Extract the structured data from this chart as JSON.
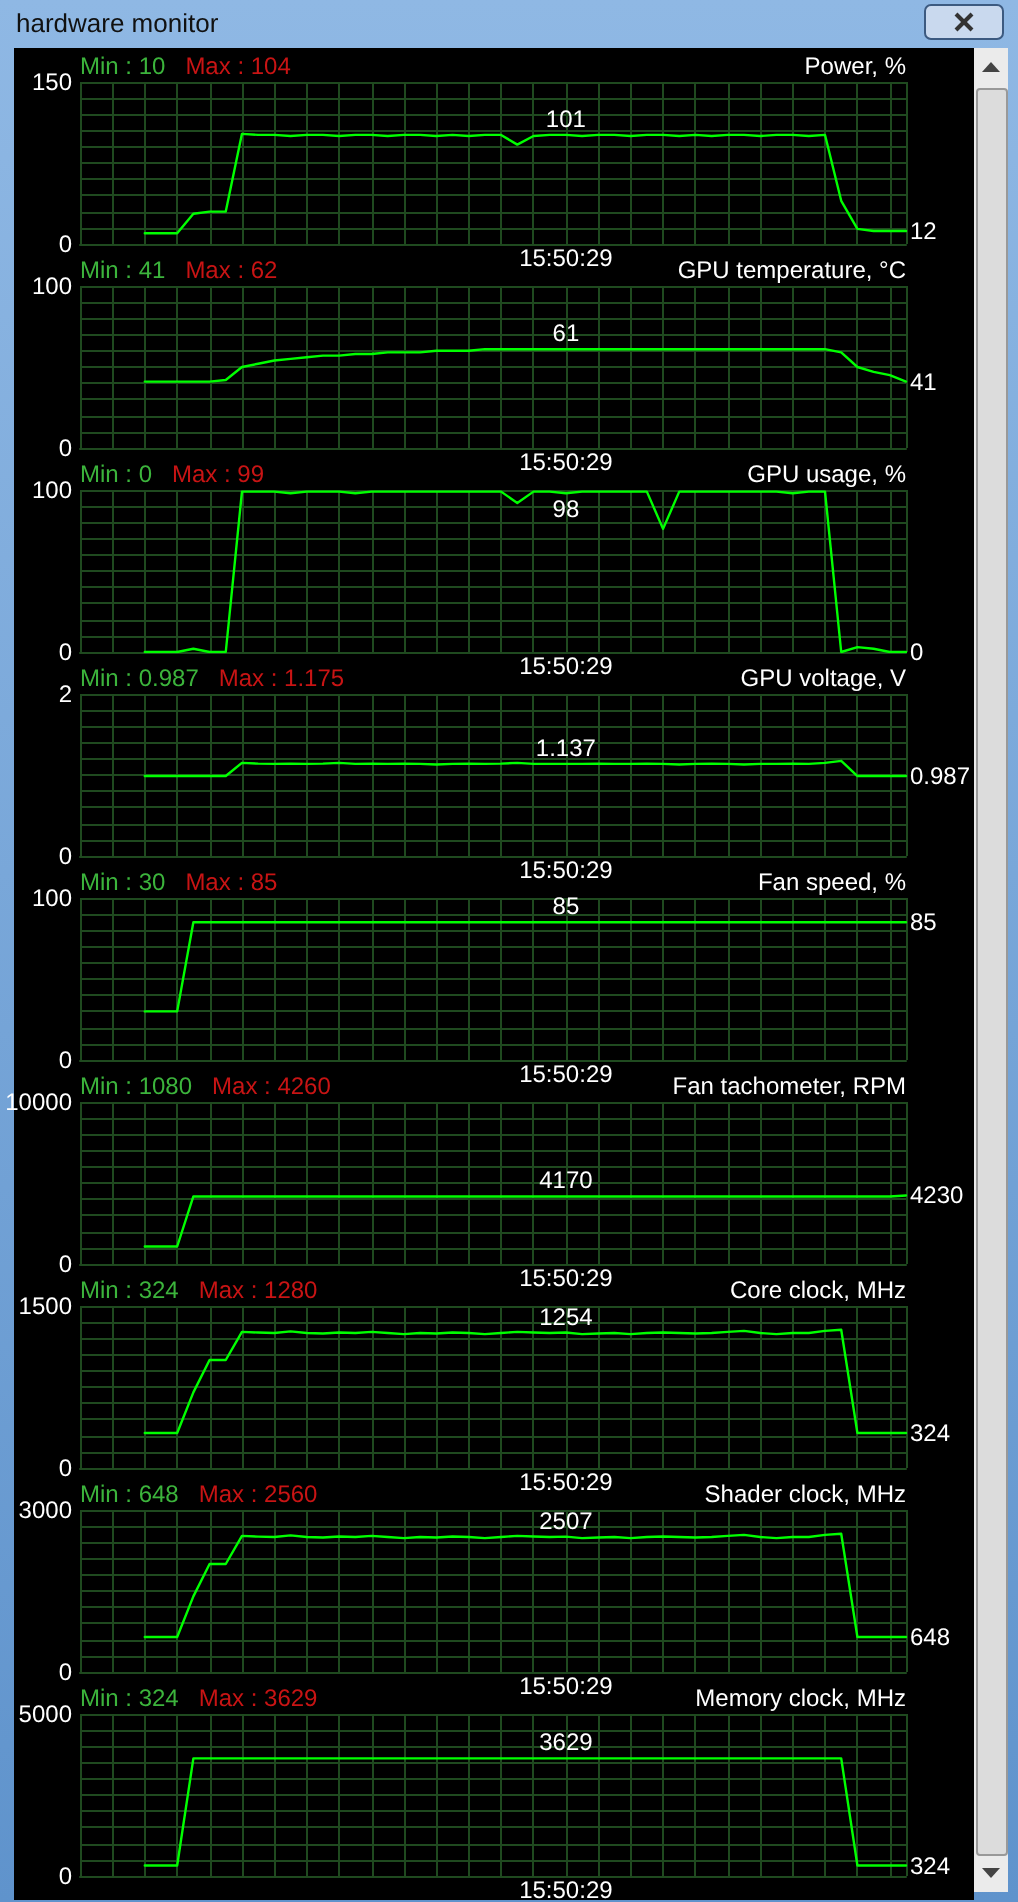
{
  "chart_data": [
    {
      "type": "line",
      "subtitle": "hardware monitor",
      "title": "Power, %",
      "annotations": [
        "Min : 10",
        "Max : 104"
      ],
      "categories": [
        null,
        null,
        null,
        null,
        null,
        null,
        null,
        null,
        null,
        null,
        null,
        null,
        null,
        null,
        null,
        null,
        null,
        null,
        null,
        null,
        null,
        null,
        null,
        null,
        null,
        null,
        null,
        null,
        null,
        null,
        "15:50:29",
        null,
        null,
        null,
        null,
        null,
        null,
        null,
        null,
        null,
        null,
        null,
        null,
        null,
        null,
        null,
        null,
        null,
        null,
        null,
        null,
        null
      ],
      "color": "#00ff00",
      "values": [
        null,
        null,
        null,
        null,
        10,
        10,
        10,
        28,
        30,
        30,
        102,
        101,
        101,
        100,
        101,
        101,
        100,
        101,
        101,
        100,
        101,
        101,
        100,
        101,
        100,
        101,
        101,
        92,
        100,
        101,
        101,
        100,
        101,
        101,
        100,
        101,
        101,
        100,
        101,
        100,
        101,
        101,
        100,
        101,
        101,
        100,
        101,
        40,
        14,
        12,
        12,
        12
      ],
      "value_labels": [
        null,
        null,
        null,
        null,
        null,
        null,
        null,
        null,
        null,
        null,
        null,
        null,
        null,
        null,
        null,
        null,
        null,
        null,
        null,
        null,
        null,
        null,
        null,
        null,
        null,
        null,
        null,
        null,
        null,
        null,
        "101",
        null,
        null,
        null,
        null,
        null,
        null,
        null,
        null,
        null,
        null,
        null,
        null,
        null,
        null,
        null,
        null,
        null,
        null,
        null,
        null,
        "12"
      ],
      "ylim": [
        0,
        150
      ],
      "yticks": [
        0,
        {
          "value": 15,
          "label": null
        },
        {
          "value": 30,
          "label": null
        },
        {
          "value": 45,
          "label": null
        },
        {
          "value": 60,
          "label": null
        },
        {
          "value": 75,
          "label": null
        },
        {
          "value": 90,
          "label": null
        },
        {
          "value": 105,
          "label": null
        },
        {
          "value": 120,
          "label": null
        },
        {
          "value": 135,
          "label": null
        },
        150
      ],
      "grid": true
    },
    {
      "type": "line",
      "title": "GPU temperature, °C",
      "annotations": [
        "Min : 41",
        "Max : 62"
      ],
      "categories": [
        null,
        null,
        null,
        null,
        null,
        null,
        null,
        null,
        null,
        null,
        null,
        null,
        null,
        null,
        null,
        null,
        null,
        null,
        null,
        null,
        null,
        null,
        null,
        null,
        null,
        null,
        null,
        null,
        null,
        null,
        "15:50:29",
        null,
        null,
        null,
        null,
        null,
        null,
        null,
        null,
        null,
        null,
        null,
        null,
        null,
        null,
        null,
        null,
        null,
        null,
        null,
        null,
        null
      ],
      "color": "#00ff00",
      "values": [
        null,
        null,
        null,
        null,
        41,
        41,
        41,
        41,
        41,
        42,
        50,
        52,
        54,
        55,
        56,
        57,
        57,
        58,
        58,
        59,
        59,
        59,
        60,
        60,
        60,
        61,
        61,
        61,
        61,
        61,
        61,
        61,
        61,
        61,
        61,
        61,
        61,
        61,
        61,
        61,
        61,
        61,
        61,
        61,
        61,
        61,
        61,
        59,
        50,
        47,
        45,
        41
      ],
      "value_labels": [
        null,
        null,
        null,
        null,
        null,
        null,
        null,
        null,
        null,
        null,
        null,
        null,
        null,
        null,
        null,
        null,
        null,
        null,
        null,
        null,
        null,
        null,
        null,
        null,
        null,
        null,
        null,
        null,
        null,
        null,
        "61",
        null,
        null,
        null,
        null,
        null,
        null,
        null,
        null,
        null,
        null,
        null,
        null,
        null,
        null,
        null,
        null,
        null,
        null,
        null,
        null,
        "41"
      ],
      "ylim": [
        0,
        100
      ],
      "yticks": [
        0,
        {
          "value": 10,
          "label": null
        },
        {
          "value": 20,
          "label": null
        },
        {
          "value": 30,
          "label": null
        },
        {
          "value": 40,
          "label": null
        },
        {
          "value": 50,
          "label": null
        },
        {
          "value": 60,
          "label": null
        },
        {
          "value": 70,
          "label": null
        },
        {
          "value": 80,
          "label": null
        },
        {
          "value": 90,
          "label": null
        },
        100
      ],
      "grid": true
    },
    {
      "type": "line",
      "title": "GPU usage, %",
      "annotations": [
        "Min : 0",
        "Max : 99"
      ],
      "categories": [
        null,
        null,
        null,
        null,
        null,
        null,
        null,
        null,
        null,
        null,
        null,
        null,
        null,
        null,
        null,
        null,
        null,
        null,
        null,
        null,
        null,
        null,
        null,
        null,
        null,
        null,
        null,
        null,
        null,
        null,
        "15:50:29",
        null,
        null,
        null,
        null,
        null,
        null,
        null,
        null,
        null,
        null,
        null,
        null,
        null,
        null,
        null,
        null,
        null,
        null,
        null,
        null,
        null
      ],
      "color": "#00ff00",
      "values": [
        null,
        null,
        null,
        null,
        0,
        0,
        0,
        2,
        0,
        0,
        99,
        99,
        99,
        98,
        99,
        99,
        99,
        98,
        99,
        99,
        99,
        99,
        99,
        99,
        99,
        99,
        99,
        92,
        99,
        99,
        98,
        99,
        99,
        99,
        99,
        99,
        76,
        99,
        99,
        99,
        99,
        99,
        99,
        99,
        98,
        99,
        99,
        0,
        3,
        2,
        0,
        0
      ],
      "value_labels": [
        null,
        null,
        null,
        null,
        null,
        null,
        null,
        null,
        null,
        null,
        null,
        null,
        null,
        null,
        null,
        null,
        null,
        null,
        null,
        null,
        null,
        null,
        null,
        null,
        null,
        null,
        null,
        null,
        null,
        null,
        "98",
        null,
        null,
        null,
        null,
        null,
        null,
        null,
        null,
        null,
        null,
        null,
        null,
        null,
        null,
        null,
        null,
        null,
        null,
        null,
        null,
        "0"
      ],
      "ylim": [
        0,
        100
      ],
      "yticks": [
        0,
        {
          "value": 10,
          "label": null
        },
        {
          "value": 20,
          "label": null
        },
        {
          "value": 30,
          "label": null
        },
        {
          "value": 40,
          "label": null
        },
        {
          "value": 50,
          "label": null
        },
        {
          "value": 60,
          "label": null
        },
        {
          "value": 70,
          "label": null
        },
        {
          "value": 80,
          "label": null
        },
        {
          "value": 90,
          "label": null
        },
        100
      ],
      "grid": true
    },
    {
      "type": "line",
      "title": "GPU voltage, V",
      "annotations": [
        "Min : 0.987",
        "Max : 1.175"
      ],
      "categories": [
        null,
        null,
        null,
        null,
        null,
        null,
        null,
        null,
        null,
        null,
        null,
        null,
        null,
        null,
        null,
        null,
        null,
        null,
        null,
        null,
        null,
        null,
        null,
        null,
        null,
        null,
        null,
        null,
        null,
        null,
        "15:50:29",
        null,
        null,
        null,
        null,
        null,
        null,
        null,
        null,
        null,
        null,
        null,
        null,
        null,
        null,
        null,
        null,
        null,
        null,
        null,
        null,
        null
      ],
      "color": "#00ff00",
      "values": [
        null,
        null,
        null,
        null,
        0.987,
        0.987,
        0.987,
        0.987,
        0.987,
        0.987,
        1.15,
        1.14,
        1.137,
        1.14,
        1.137,
        1.14,
        1.15,
        1.137,
        1.14,
        1.137,
        1.14,
        1.137,
        1.13,
        1.137,
        1.14,
        1.137,
        1.14,
        1.15,
        1.137,
        1.137,
        1.137,
        1.137,
        1.14,
        1.137,
        1.137,
        1.14,
        1.137,
        1.13,
        1.137,
        1.14,
        1.137,
        1.13,
        1.137,
        1.137,
        1.14,
        1.137,
        1.15,
        1.175,
        0.987,
        0.987,
        0.987,
        0.987
      ],
      "value_labels": [
        null,
        null,
        null,
        null,
        null,
        null,
        null,
        null,
        null,
        null,
        null,
        null,
        null,
        null,
        null,
        null,
        null,
        null,
        null,
        null,
        null,
        null,
        null,
        null,
        null,
        null,
        null,
        null,
        null,
        null,
        "1.137",
        null,
        null,
        null,
        null,
        null,
        null,
        null,
        null,
        null,
        null,
        null,
        null,
        null,
        null,
        null,
        null,
        null,
        null,
        null,
        null,
        "0.987"
      ],
      "ylim": [
        0,
        2
      ],
      "yticks": [
        0,
        {
          "value": 0.2,
          "label": null
        },
        {
          "value": 0.4,
          "label": null
        },
        {
          "value": 0.6,
          "label": null
        },
        {
          "value": 0.8,
          "label": null
        },
        {
          "value": 1,
          "label": null
        },
        {
          "value": 1.2,
          "label": null
        },
        {
          "value": 1.4,
          "label": null
        },
        {
          "value": 1.6,
          "label": null
        },
        {
          "value": 1.8,
          "label": null
        },
        2
      ],
      "grid": true
    },
    {
      "type": "line",
      "title": "Fan speed, %",
      "annotations": [
        "Min : 30",
        "Max : 85"
      ],
      "categories": [
        null,
        null,
        null,
        null,
        null,
        null,
        null,
        null,
        null,
        null,
        null,
        null,
        null,
        null,
        null,
        null,
        null,
        null,
        null,
        null,
        null,
        null,
        null,
        null,
        null,
        null,
        null,
        null,
        null,
        null,
        "15:50:29",
        null,
        null,
        null,
        null,
        null,
        null,
        null,
        null,
        null,
        null,
        null,
        null,
        null,
        null,
        null,
        null,
        null,
        null,
        null,
        null,
        null
      ],
      "color": "#00ff00",
      "values": [
        null,
        null,
        null,
        null,
        30,
        30,
        30,
        85,
        85,
        85,
        85,
        85,
        85,
        85,
        85,
        85,
        85,
        85,
        85,
        85,
        85,
        85,
        85,
        85,
        85,
        85,
        85,
        85,
        85,
        85,
        85,
        85,
        85,
        85,
        85,
        85,
        85,
        85,
        85,
        85,
        85,
        85,
        85,
        85,
        85,
        85,
        85,
        85,
        85,
        85,
        85,
        85
      ],
      "value_labels": [
        null,
        null,
        null,
        null,
        null,
        null,
        null,
        null,
        null,
        null,
        null,
        null,
        null,
        null,
        null,
        null,
        null,
        null,
        null,
        null,
        null,
        null,
        null,
        null,
        null,
        null,
        null,
        null,
        null,
        null,
        "85",
        null,
        null,
        null,
        null,
        null,
        null,
        null,
        null,
        null,
        null,
        null,
        null,
        null,
        null,
        null,
        null,
        null,
        null,
        null,
        null,
        "85"
      ],
      "ylim": [
        0,
        100
      ],
      "yticks": [
        0,
        {
          "value": 10,
          "label": null
        },
        {
          "value": 20,
          "label": null
        },
        {
          "value": 30,
          "label": null
        },
        {
          "value": 40,
          "label": null
        },
        {
          "value": 50,
          "label": null
        },
        {
          "value": 60,
          "label": null
        },
        {
          "value": 70,
          "label": null
        },
        {
          "value": 80,
          "label": null
        },
        {
          "value": 90,
          "label": null
        },
        100
      ],
      "grid": true
    },
    {
      "type": "line",
      "title": "Fan tachometer, RPM",
      "annotations": [
        "Min : 1080",
        "Max : 4260"
      ],
      "categories": [
        null,
        null,
        null,
        null,
        null,
        null,
        null,
        null,
        null,
        null,
        null,
        null,
        null,
        null,
        null,
        null,
        null,
        null,
        null,
        null,
        null,
        null,
        null,
        null,
        null,
        null,
        null,
        null,
        null,
        null,
        "15:50:29",
        null,
        null,
        null,
        null,
        null,
        null,
        null,
        null,
        null,
        null,
        null,
        null,
        null,
        null,
        null,
        null,
        null,
        null,
        null,
        null,
        null
      ],
      "color": "#00ff00",
      "values": [
        null,
        null,
        null,
        null,
        1080,
        1080,
        1080,
        4170,
        4170,
        4170,
        4170,
        4170,
        4170,
        4170,
        4170,
        4170,
        4170,
        4170,
        4170,
        4170,
        4170,
        4170,
        4170,
        4170,
        4170,
        4170,
        4170,
        4170,
        4170,
        4170,
        4170,
        4170,
        4170,
        4170,
        4170,
        4170,
        4170,
        4170,
        4170,
        4170,
        4170,
        4170,
        4170,
        4170,
        4170,
        4170,
        4170,
        4170,
        4170,
        4170,
        4170,
        4230
      ],
      "value_labels": [
        null,
        null,
        null,
        null,
        null,
        null,
        null,
        null,
        null,
        null,
        null,
        null,
        null,
        null,
        null,
        null,
        null,
        null,
        null,
        null,
        null,
        null,
        null,
        null,
        null,
        null,
        null,
        null,
        null,
        null,
        "4170",
        null,
        null,
        null,
        null,
        null,
        null,
        null,
        null,
        null,
        null,
        null,
        null,
        null,
        null,
        null,
        null,
        null,
        null,
        null,
        null,
        "4230"
      ],
      "ylim": [
        0,
        10000
      ],
      "yticks": [
        0,
        {
          "value": 1000,
          "label": null
        },
        {
          "value": 2000,
          "label": null
        },
        {
          "value": 3000,
          "label": null
        },
        {
          "value": 4000,
          "label": null
        },
        {
          "value": 5000,
          "label": null
        },
        {
          "value": 6000,
          "label": null
        },
        {
          "value": 7000,
          "label": null
        },
        {
          "value": 8000,
          "label": null
        },
        {
          "value": 9000,
          "label": null
        },
        10000
      ],
      "grid": true
    },
    {
      "type": "line",
      "title": "Core clock, MHz",
      "annotations": [
        "Min : 324",
        "Max : 1280"
      ],
      "categories": [
        null,
        null,
        null,
        null,
        null,
        null,
        null,
        null,
        null,
        null,
        null,
        null,
        null,
        null,
        null,
        null,
        null,
        null,
        null,
        null,
        null,
        null,
        null,
        null,
        null,
        null,
        null,
        null,
        null,
        null,
        "15:50:29",
        null,
        null,
        null,
        null,
        null,
        null,
        null,
        null,
        null,
        null,
        null,
        null,
        null,
        null,
        null,
        null,
        null,
        null,
        null,
        null,
        null
      ],
      "color": "#00ff00",
      "values": [
        null,
        null,
        null,
        null,
        324,
        324,
        324,
        700,
        1000,
        1000,
        1260,
        1254,
        1250,
        1265,
        1250,
        1245,
        1255,
        1250,
        1260,
        1250,
        1240,
        1250,
        1245,
        1255,
        1250,
        1240,
        1250,
        1260,
        1255,
        1250,
        1254,
        1240,
        1245,
        1250,
        1240,
        1250,
        1255,
        1250,
        1245,
        1250,
        1260,
        1270,
        1250,
        1240,
        1250,
        1250,
        1270,
        1280,
        324,
        324,
        324,
        324
      ],
      "value_labels": [
        null,
        null,
        null,
        null,
        null,
        null,
        null,
        null,
        null,
        null,
        null,
        null,
        null,
        null,
        null,
        null,
        null,
        null,
        null,
        null,
        null,
        null,
        null,
        null,
        null,
        null,
        null,
        null,
        null,
        null,
        "1254",
        null,
        null,
        null,
        null,
        null,
        null,
        null,
        null,
        null,
        null,
        null,
        null,
        null,
        null,
        null,
        null,
        null,
        null,
        null,
        null,
        "324"
      ],
      "ylim": [
        0,
        1500
      ],
      "yticks": [
        0,
        {
          "value": 150,
          "label": null
        },
        {
          "value": 300,
          "label": null
        },
        {
          "value": 450,
          "label": null
        },
        {
          "value": 600,
          "label": null
        },
        {
          "value": 750,
          "label": null
        },
        {
          "value": 900,
          "label": null
        },
        {
          "value": 1050,
          "label": null
        },
        {
          "value": 1200,
          "label": null
        },
        {
          "value": 1350,
          "label": null
        },
        1500
      ],
      "grid": true
    },
    {
      "type": "line",
      "title": "Shader clock, MHz",
      "annotations": [
        "Min : 648",
        "Max : 2560"
      ],
      "categories": [
        null,
        null,
        null,
        null,
        null,
        null,
        null,
        null,
        null,
        null,
        null,
        null,
        null,
        null,
        null,
        null,
        null,
        null,
        null,
        null,
        null,
        null,
        null,
        null,
        null,
        null,
        null,
        null,
        null,
        null,
        "15:50:29",
        null,
        null,
        null,
        null,
        null,
        null,
        null,
        null,
        null,
        null,
        null,
        null,
        null,
        null,
        null,
        null,
        null,
        null,
        null,
        null,
        null
      ],
      "color": "#00ff00",
      "values": [
        null,
        null,
        null,
        null,
        648,
        648,
        648,
        1400,
        2000,
        2000,
        2520,
        2507,
        2500,
        2530,
        2500,
        2490,
        2510,
        2500,
        2520,
        2500,
        2480,
        2500,
        2490,
        2510,
        2500,
        2480,
        2500,
        2520,
        2510,
        2500,
        2507,
        2480,
        2490,
        2500,
        2480,
        2500,
        2510,
        2500,
        2490,
        2500,
        2520,
        2540,
        2500,
        2480,
        2500,
        2500,
        2540,
        2560,
        648,
        648,
        648,
        648
      ],
      "value_labels": [
        null,
        null,
        null,
        null,
        null,
        null,
        null,
        null,
        null,
        null,
        null,
        null,
        null,
        null,
        null,
        null,
        null,
        null,
        null,
        null,
        null,
        null,
        null,
        null,
        null,
        null,
        null,
        null,
        null,
        null,
        "2507",
        null,
        null,
        null,
        null,
        null,
        null,
        null,
        null,
        null,
        null,
        null,
        null,
        null,
        null,
        null,
        null,
        null,
        null,
        null,
        null,
        "648"
      ],
      "ylim": [
        0,
        3000
      ],
      "yticks": [
        0,
        {
          "value": 300,
          "label": null
        },
        {
          "value": 600,
          "label": null
        },
        {
          "value": 900,
          "label": null
        },
        {
          "value": 1200,
          "label": null
        },
        {
          "value": 1500,
          "label": null
        },
        {
          "value": 1800,
          "label": null
        },
        {
          "value": 2100,
          "label": null
        },
        {
          "value": 2400,
          "label": null
        },
        {
          "value": 2700,
          "label": null
        },
        3000
      ],
      "grid": true
    },
    {
      "type": "line",
      "title": "Memory clock, MHz",
      "annotations": [
        "Min : 324",
        "Max : 3629"
      ],
      "categories": [
        null,
        null,
        null,
        null,
        null,
        null,
        null,
        null,
        null,
        null,
        null,
        null,
        null,
        null,
        null,
        null,
        null,
        null,
        null,
        null,
        null,
        null,
        null,
        null,
        null,
        null,
        null,
        null,
        null,
        null,
        "15:50:29",
        null,
        null,
        null,
        null,
        null,
        null,
        null,
        null,
        null,
        null,
        null,
        null,
        null,
        null,
        null,
        null,
        null,
        null,
        null,
        null,
        null
      ],
      "color": "#00ff00",
      "values": [
        null,
        null,
        null,
        null,
        324,
        324,
        324,
        3629,
        3629,
        3629,
        3629,
        3629,
        3629,
        3629,
        3629,
        3629,
        3629,
        3629,
        3629,
        3629,
        3629,
        3629,
        3629,
        3629,
        3629,
        3629,
        3629,
        3629,
        3629,
        3629,
        3629,
        3629,
        3629,
        3629,
        3629,
        3629,
        3629,
        3629,
        3629,
        3629,
        3629,
        3629,
        3629,
        3629,
        3629,
        3629,
        3629,
        3629,
        324,
        324,
        324,
        324
      ],
      "value_labels": [
        null,
        null,
        null,
        null,
        null,
        null,
        null,
        null,
        null,
        null,
        null,
        null,
        null,
        null,
        null,
        null,
        null,
        null,
        null,
        null,
        null,
        null,
        null,
        null,
        null,
        null,
        null,
        null,
        null,
        null,
        "3629",
        null,
        null,
        null,
        null,
        null,
        null,
        null,
        null,
        null,
        null,
        null,
        null,
        null,
        null,
        null,
        null,
        null,
        null,
        null,
        null,
        "324"
      ],
      "ylim": [
        0,
        5000
      ],
      "yticks": [
        0,
        {
          "value": 500,
          "label": null
        },
        {
          "value": 1000,
          "label": null
        },
        {
          "value": 1500,
          "label": null
        },
        {
          "value": 2000,
          "label": null
        },
        {
          "value": 2500,
          "label": null
        },
        {
          "value": 3000,
          "label": null
        },
        {
          "value": 3500,
          "label": null
        },
        {
          "value": 4000,
          "label": null
        },
        {
          "value": 4500,
          "label": null
        },
        5000
      ],
      "grid": true
    }
  ]
}
